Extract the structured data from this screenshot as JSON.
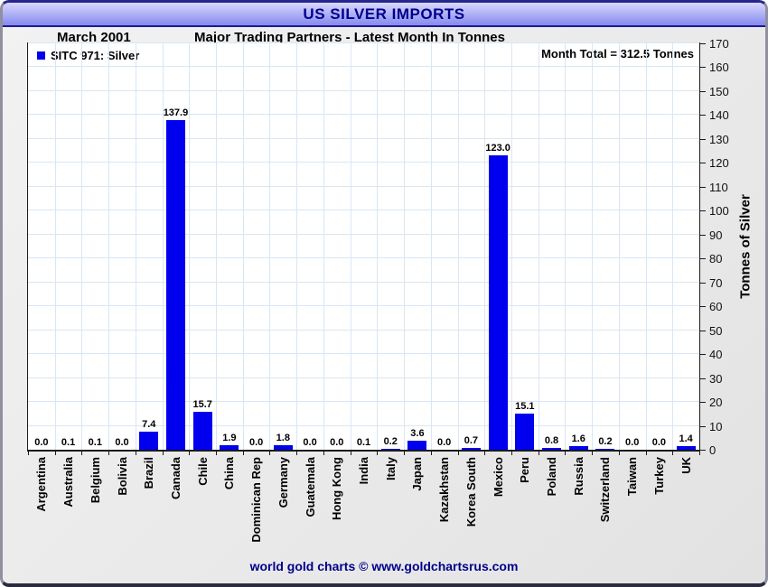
{
  "window": {
    "title": "US SILVER IMPORTS",
    "footer": "world gold charts © www.goldchartsrus.com"
  },
  "header": {
    "period": "March 2001",
    "subtitle": "Major Trading Partners - Latest Month In Tonnes"
  },
  "colors": {
    "bar": "#0000ee",
    "titlebar_text": "#00008b",
    "gridline": "#d9e6f3",
    "footer_text": "#00008b"
  },
  "chart_data": {
    "type": "bar",
    "title": "US SILVER IMPORTS",
    "subtitle": "Major Trading Partners - Latest Month In Tonnes",
    "period": "March 2001",
    "legend": "SITC 971: Silver",
    "annotation": "Month Total = 312.5 Tonnes",
    "ylabel": "Tonnes of Silver",
    "ylim": [
      0,
      170
    ],
    "ytick_step": 10,
    "grid": true,
    "legend_position": "top-left",
    "bar_color": "#0000ee",
    "categories": [
      "Argentina",
      "Australia",
      "Belgium",
      "Bolivia",
      "Brazil",
      "Canada",
      "Chile",
      "China",
      "Dominican Rep",
      "Germany",
      "Guatemala",
      "Hong Kong",
      "India",
      "Italy",
      "Japan",
      "Kazakhstan",
      "Korea South",
      "Mexico",
      "Peru",
      "Poland",
      "Russia",
      "Switzerland",
      "Taiwan",
      "Turkey",
      "UK"
    ],
    "values": [
      0.0,
      0.1,
      0.1,
      0.0,
      7.4,
      137.9,
      15.7,
      1.9,
      0.0,
      1.8,
      0.0,
      0.0,
      0.1,
      0.2,
      3.6,
      0.0,
      0.7,
      123.0,
      15.1,
      0.8,
      1.6,
      0.2,
      0.0,
      0.0,
      1.4
    ]
  }
}
